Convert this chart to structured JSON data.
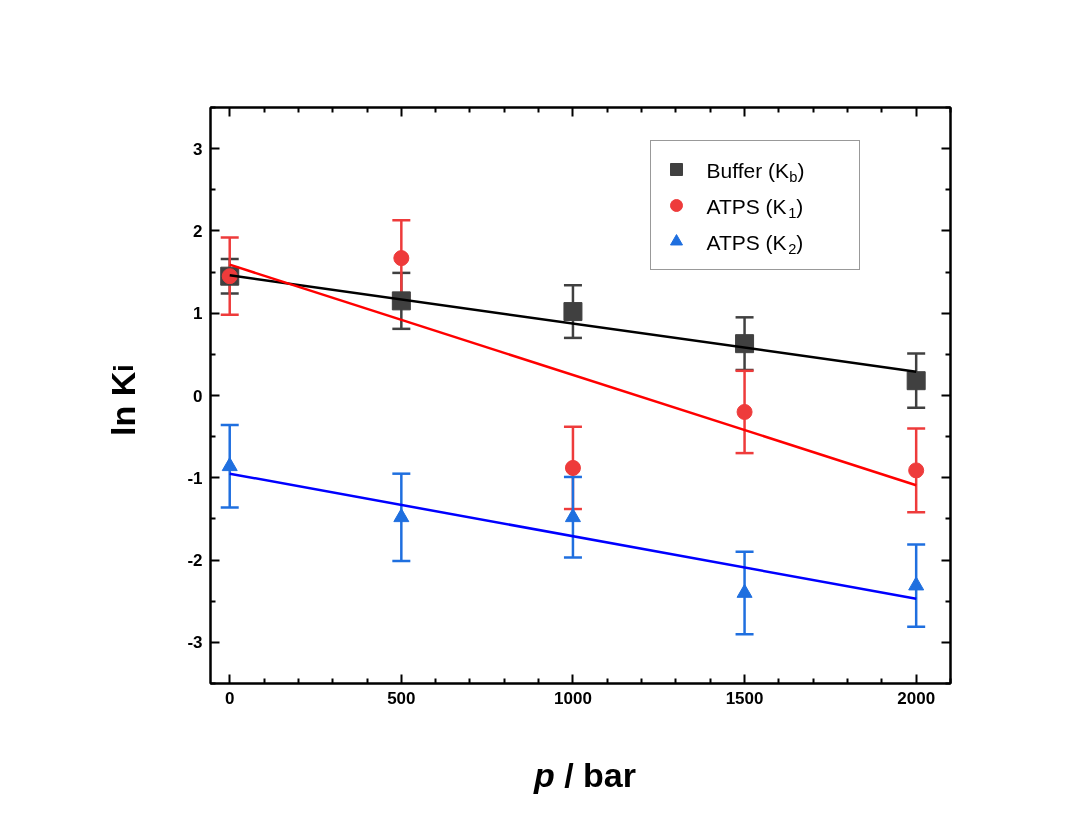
{
  "chart_data": {
    "type": "scatter",
    "xlabel": "p / bar",
    "ylabel": "ln K$_{i}$",
    "xlim": [
      -56,
      2100
    ],
    "ylim": [
      -3.5,
      3.5
    ],
    "xticks": [
      0,
      500,
      1000,
      1500,
      2000
    ],
    "yticks": [
      -3,
      -2,
      -1,
      0,
      1,
      2,
      3
    ],
    "grid": false,
    "legend": "top right",
    "series": [
      {
        "name": "Buffer (K$_{b}$)",
        "marker": "square",
        "color": "#404040",
        "x": [
          0,
          500,
          1000,
          1500,
          2000
        ],
        "values": [
          1.45,
          1.15,
          1.02,
          0.63,
          0.18
        ],
        "errors": [
          0.21,
          0.34,
          0.32,
          0.32,
          0.33
        ]
      },
      {
        "name": "ATPS (K$_{1}$)",
        "marker": "circle",
        "color": "#ee3b3b",
        "x": [
          0,
          500,
          1000,
          1500,
          2000
        ],
        "values": [
          1.45,
          1.67,
          -0.88,
          -0.2,
          -0.91
        ],
        "errors": [
          0.47,
          0.46,
          0.5,
          0.5,
          0.51
        ]
      },
      {
        "name": "ATPS (K$_{2}$)",
        "marker": "triangle",
        "color": "#1f6fdf",
        "x": [
          0,
          500,
          1000,
          1500,
          2000
        ],
        "values": [
          -0.86,
          -1.48,
          -1.48,
          -2.4,
          -2.31
        ],
        "errors": [
          0.5,
          0.53,
          0.49,
          0.5,
          0.5
        ]
      },
      {
        "type": "line",
        "color": "#000000",
        "x": [
          0,
          2000
        ],
        "values": [
          1.46,
          0.29
        ]
      },
      {
        "type": "line",
        "color": "#ff0000",
        "x": [
          0,
          2000
        ],
        "values": [
          1.59,
          -1.09
        ]
      },
      {
        "type": "line",
        "color": "#0000ff",
        "x": [
          0,
          2000
        ],
        "values": [
          -0.95,
          -2.47
        ]
      }
    ]
  }
}
